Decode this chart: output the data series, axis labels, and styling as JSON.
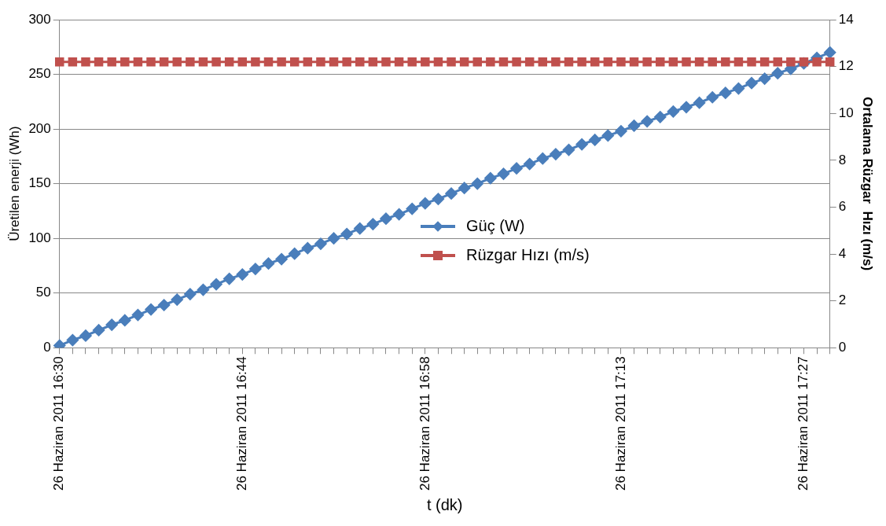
{
  "chart_data": {
    "type": "line",
    "xlabel": "t (dk)",
    "ylabel": "Üretilen enerji (Wh)",
    "y2label": "Ortalama Rüzgar  Hızı (m/s)",
    "categories": [
      "26 Haziran 2011 16:30",
      null,
      null,
      null,
      null,
      null,
      null,
      null,
      null,
      null,
      null,
      null,
      null,
      null,
      "26 Haziran 2011 16:44",
      null,
      null,
      null,
      null,
      null,
      null,
      null,
      null,
      null,
      null,
      null,
      null,
      null,
      "26 Haziran 2011 16:58",
      null,
      null,
      null,
      null,
      null,
      null,
      null,
      null,
      null,
      null,
      null,
      null,
      null,
      null,
      "26 Haziran 2011 17:13",
      null,
      null,
      null,
      null,
      null,
      null,
      null,
      null,
      null,
      null,
      null,
      null,
      null,
      "26 Haziran 2011 17:27",
      null,
      null
    ],
    "ylim": [
      0,
      300
    ],
    "yticks": [
      0,
      50,
      100,
      150,
      200,
      250,
      300
    ],
    "y2lim": [
      0,
      14
    ],
    "y2ticks": [
      0,
      2,
      4,
      6,
      8,
      10,
      12,
      14
    ],
    "grid": "y",
    "legend": "bottom",
    "line_style": "solid",
    "series": [
      {
        "name": "Güç (W)",
        "color": "#4a7ebb",
        "marker": "diamond",
        "values": [
          2,
          7,
          11,
          16,
          21,
          25,
          30,
          35,
          39,
          44,
          49,
          53,
          58,
          63,
          67,
          72,
          77,
          81,
          86,
          91,
          95,
          100,
          104,
          109,
          113,
          118,
          122,
          127,
          132,
          136,
          141,
          146,
          150,
          155,
          159,
          164,
          168,
          173,
          177,
          181,
          186,
          190,
          194,
          198,
          203,
          207,
          211,
          216,
          220,
          224,
          229,
          233,
          237,
          242,
          246,
          251,
          255,
          260,
          265,
          270
        ]
      },
      {
        "name": "Rüzgar Hızı (m/s)",
        "color": "#c0504d",
        "marker": "square",
        "axis": "y2",
        "values": [
          12.2,
          12.2,
          12.2,
          12.2,
          12.2,
          12.2,
          12.2,
          12.2,
          12.2,
          12.2,
          12.2,
          12.2,
          12.2,
          12.2,
          12.2,
          12.2,
          12.2,
          12.2,
          12.2,
          12.2,
          12.2,
          12.2,
          12.2,
          12.2,
          12.2,
          12.2,
          12.2,
          12.2,
          12.2,
          12.2,
          12.2,
          12.2,
          12.2,
          12.2,
          12.2,
          12.2,
          12.2,
          12.2,
          12.2,
          12.2,
          12.2,
          12.2,
          12.2,
          12.2,
          12.2,
          12.2,
          12.2,
          12.2,
          12.2,
          12.2,
          12.2,
          12.2,
          12.2,
          12.2,
          12.2,
          12.2,
          12.2,
          12.2,
          12.2,
          12.2
        ]
      }
    ]
  }
}
